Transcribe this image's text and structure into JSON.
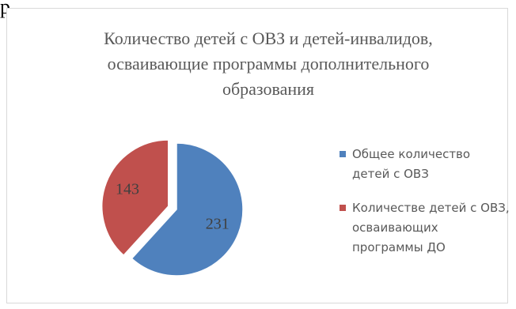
{
  "top_fragment": "р",
  "chart_data": {
    "type": "pie",
    "title": "Количество детей с ОВЗ и детей-инвалидов, осваивающие программы дополнительного образования",
    "title_lines": [
      "Количество детей с ОВЗ и детей-инвалидов,",
      "осваивающие программы дополнительного",
      "образования"
    ],
    "series": [
      {
        "categories": [
          "Общее количество детей с ОВЗ",
          "Количестве детей с ОВЗ, осваивающих программы ДО"
        ],
        "values": [
          231,
          143
        ],
        "colors": [
          "#4f81bd",
          "#c0504d"
        ]
      }
    ],
    "legend": {
      "placement": "right",
      "items": [
        {
          "label": "Общее количество детей с ОВЗ",
          "color": "#4f81bd"
        },
        {
          "label": "Количестве детей с ОВЗ, осваивающих программы ДО",
          "color": "#c0504d"
        }
      ]
    },
    "data_labels": [
      "231",
      "143"
    ],
    "exploded_slice": "Количестве детей с ОВЗ, осваивающих программы ДО"
  }
}
